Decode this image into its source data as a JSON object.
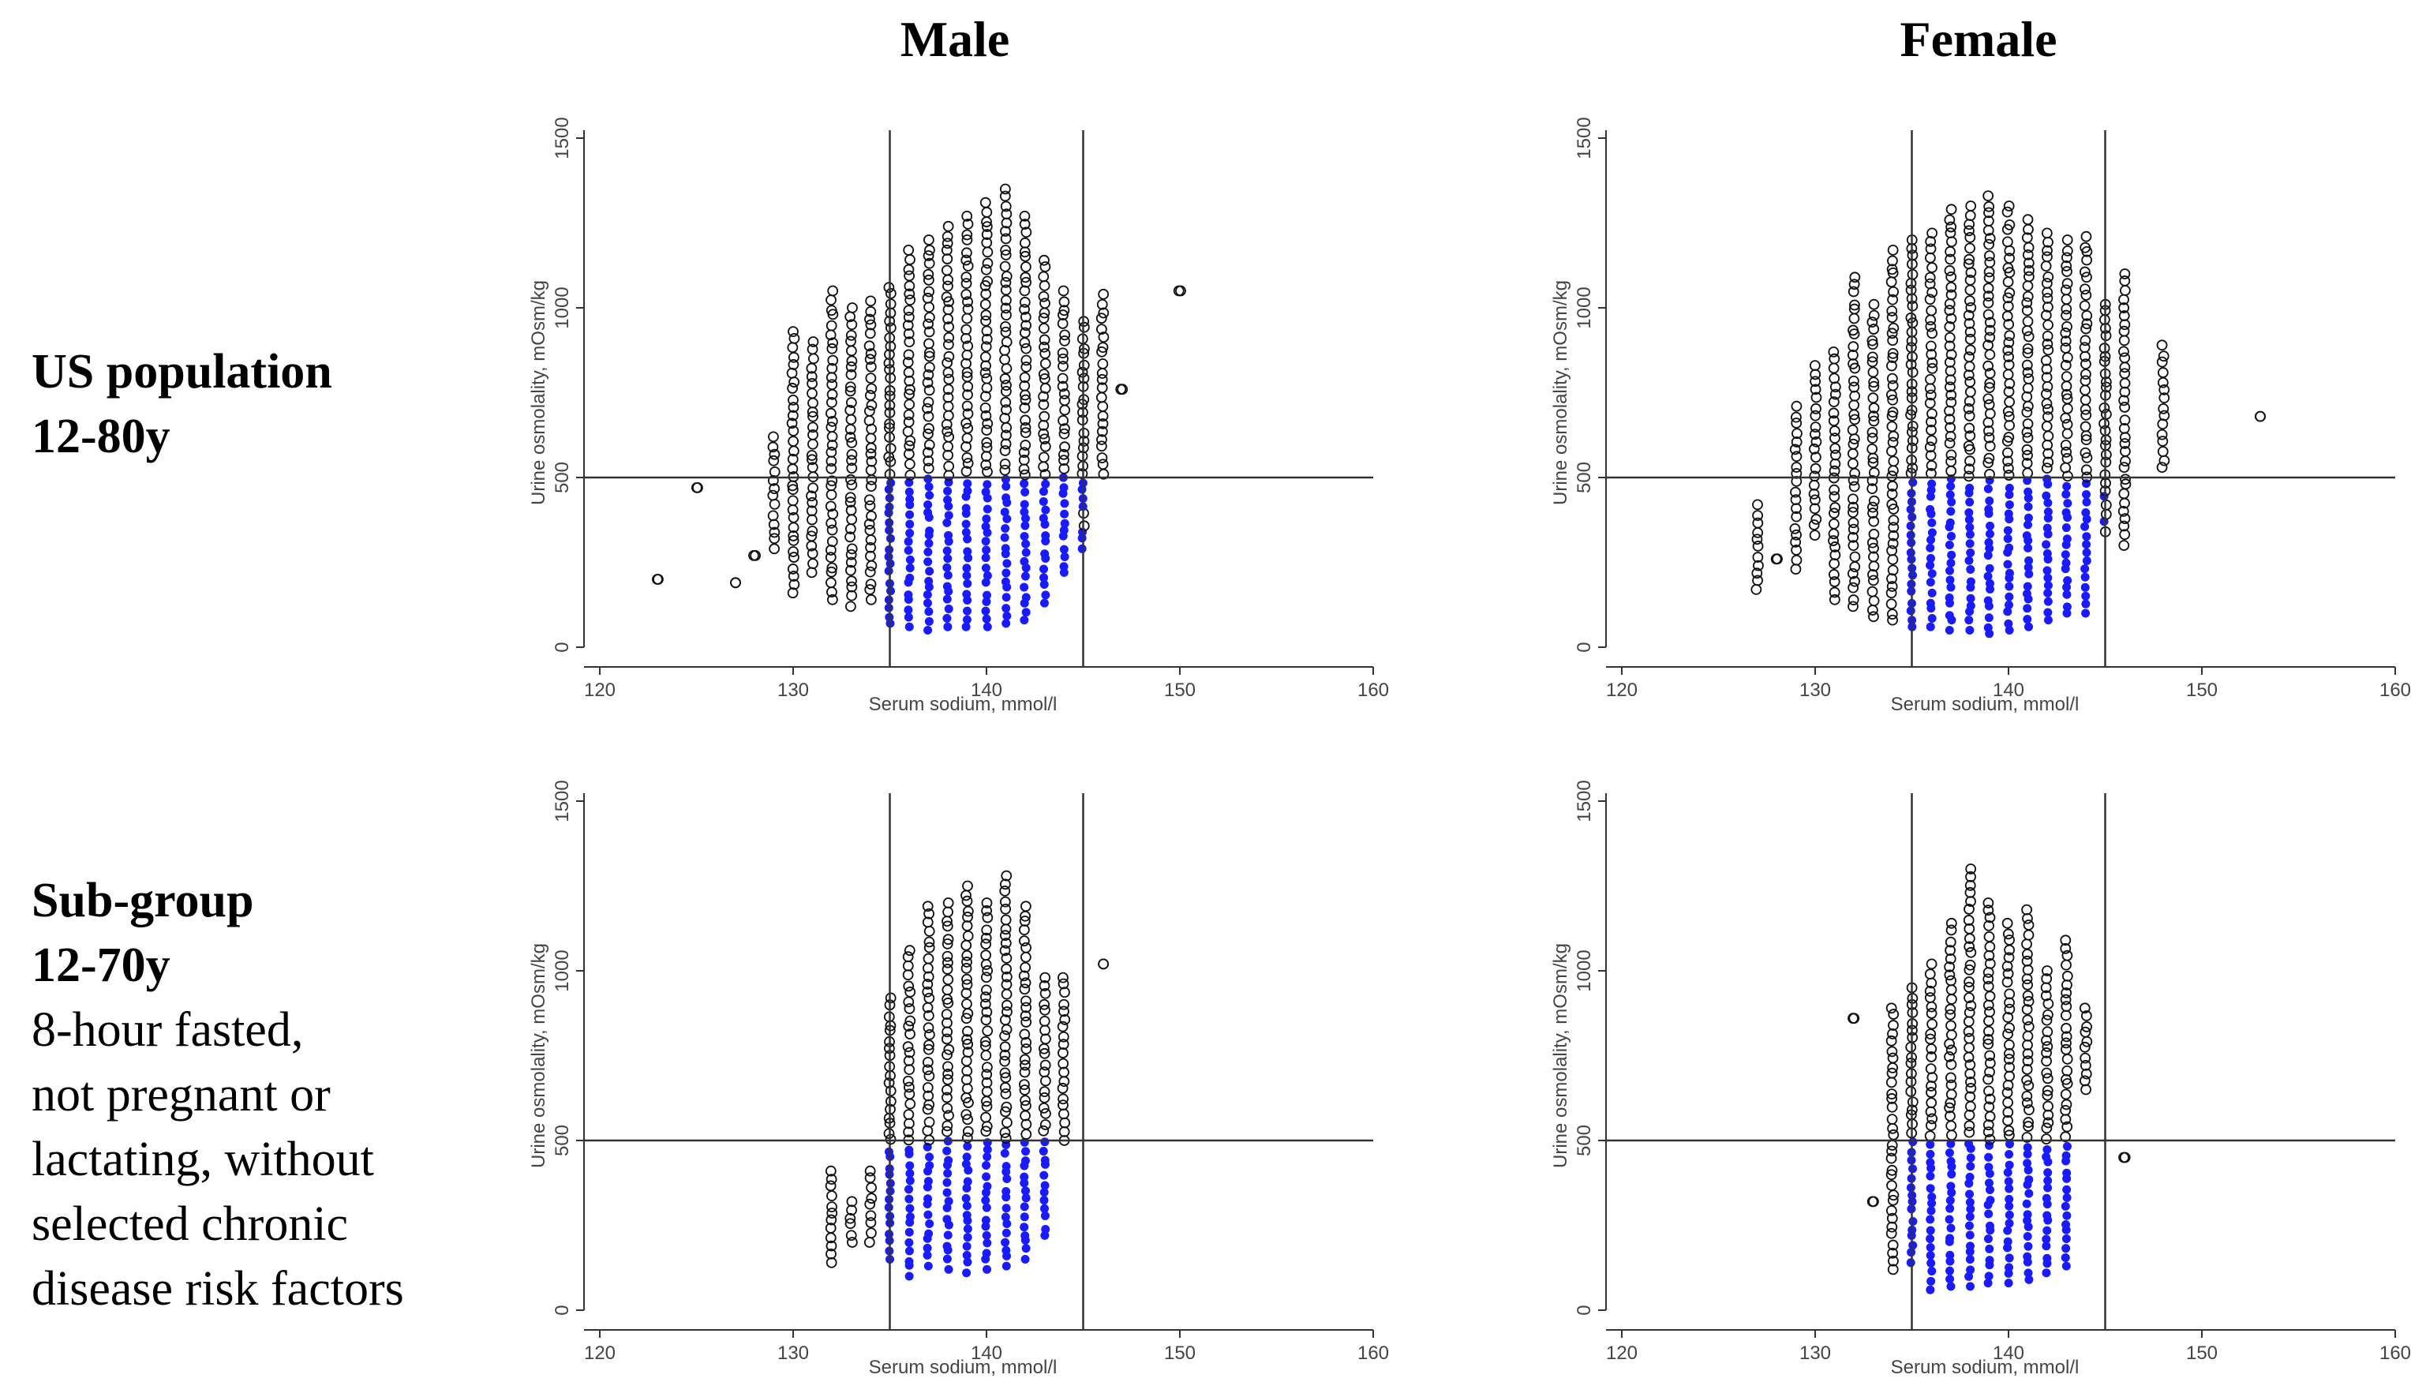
{
  "columns": [
    "Male",
    "Female"
  ],
  "rows": [
    {
      "bold_lines": [
        "US population",
        "12-80y"
      ],
      "plain_lines": []
    },
    {
      "bold_lines": [
        "Sub-group",
        "12-70y"
      ],
      "plain_lines": [
        "8-hour fasted,",
        "not pregnant or",
        "lactating, without",
        "selected chronic",
        "disease risk factors"
      ]
    }
  ],
  "colors": {
    "open_marker": "#111111",
    "filled_marker": "#1a1aff",
    "axis": "#333333"
  },
  "chart_data": [
    {
      "type": "scatter",
      "panel": "US population 12-80y — Male",
      "xlabel": "Serum sodium, mmol/l",
      "ylabel": "Urine osmolality, mOsm/kg",
      "xlim": [
        120,
        160
      ],
      "ylim": [
        0,
        1500
      ],
      "xticks": [
        120,
        130,
        140,
        150,
        160
      ],
      "yticks": [
        0,
        500,
        1000,
        1500
      ],
      "reference_lines": {
        "x": [
          135,
          145
        ],
        "y": [
          500
        ]
      },
      "columns": [
        {
          "x": 123,
          "ymin": 200,
          "ymax": 200
        },
        {
          "x": 125,
          "ymin": 470,
          "ymax": 470
        },
        {
          "x": 127,
          "ymin": 190,
          "ymax": 190
        },
        {
          "x": 128,
          "ymin": 270,
          "ymax": 270
        },
        {
          "x": 129,
          "ymin": 290,
          "ymax": 620
        },
        {
          "x": 130,
          "ymin": 160,
          "ymax": 930
        },
        {
          "x": 131,
          "ymin": 220,
          "ymax": 900
        },
        {
          "x": 132,
          "ymin": 140,
          "ymax": 1050
        },
        {
          "x": 133,
          "ymin": 120,
          "ymax": 1000
        },
        {
          "x": 134,
          "ymin": 140,
          "ymax": 1020
        },
        {
          "x": 135,
          "ymin": 70,
          "ymax": 1060
        },
        {
          "x": 136,
          "ymin": 60,
          "ymax": 1170
        },
        {
          "x": 137,
          "ymin": 50,
          "ymax": 1200
        },
        {
          "x": 138,
          "ymin": 60,
          "ymax": 1240
        },
        {
          "x": 139,
          "ymin": 60,
          "ymax": 1270
        },
        {
          "x": 140,
          "ymin": 60,
          "ymax": 1310
        },
        {
          "x": 141,
          "ymin": 70,
          "ymax": 1350
        },
        {
          "x": 142,
          "ymin": 80,
          "ymax": 1270
        },
        {
          "x": 143,
          "ymin": 130,
          "ymax": 1140
        },
        {
          "x": 144,
          "ymin": 220,
          "ymax": 1050
        },
        {
          "x": 145,
          "ymin": 290,
          "ymax": 960
        },
        {
          "x": 146,
          "ymin": 510,
          "ymax": 1040
        },
        {
          "x": 147,
          "ymin": 760,
          "ymax": 760
        },
        {
          "x": 150,
          "ymin": 1050,
          "ymax": 1050
        }
      ]
    },
    {
      "type": "scatter",
      "panel": "US population 12-80y — Female",
      "xlabel": "Serum sodium, mmol/l",
      "ylabel": "Urine osmolality, mOsm/kg",
      "xlim": [
        120,
        160
      ],
      "ylim": [
        0,
        1500
      ],
      "xticks": [
        120,
        130,
        140,
        150,
        160
      ],
      "yticks": [
        0,
        500,
        1000,
        1500
      ],
      "reference_lines": {
        "x": [
          135,
          145
        ],
        "y": [
          500
        ]
      },
      "columns": [
        {
          "x": 127,
          "ymin": 170,
          "ymax": 420
        },
        {
          "x": 128,
          "ymin": 260,
          "ymax": 260
        },
        {
          "x": 129,
          "ymin": 230,
          "ymax": 710
        },
        {
          "x": 130,
          "ymin": 330,
          "ymax": 830
        },
        {
          "x": 131,
          "ymin": 140,
          "ymax": 870
        },
        {
          "x": 132,
          "ymin": 120,
          "ymax": 1090
        },
        {
          "x": 133,
          "ymin": 90,
          "ymax": 1010
        },
        {
          "x": 134,
          "ymin": 80,
          "ymax": 1170
        },
        {
          "x": 135,
          "ymin": 60,
          "ymax": 1200
        },
        {
          "x": 136,
          "ymin": 60,
          "ymax": 1220
        },
        {
          "x": 137,
          "ymin": 50,
          "ymax": 1290
        },
        {
          "x": 138,
          "ymin": 50,
          "ymax": 1300
        },
        {
          "x": 139,
          "ymin": 40,
          "ymax": 1330
        },
        {
          "x": 140,
          "ymin": 50,
          "ymax": 1300
        },
        {
          "x": 141,
          "ymin": 60,
          "ymax": 1260
        },
        {
          "x": 142,
          "ymin": 80,
          "ymax": 1220
        },
        {
          "x": 143,
          "ymin": 100,
          "ymax": 1200
        },
        {
          "x": 144,
          "ymin": 100,
          "ymax": 1210
        },
        {
          "x": 145,
          "ymin": 340,
          "ymax": 1010
        },
        {
          "x": 146,
          "ymin": 300,
          "ymax": 1100
        },
        {
          "x": 148,
          "ymin": 530,
          "ymax": 890
        },
        {
          "x": 153,
          "ymin": 680,
          "ymax": 680
        }
      ]
    },
    {
      "type": "scatter",
      "panel": "Sub-group 12-70y — Male",
      "xlabel": "Serum sodium, mmol/l",
      "ylabel": "Urine osmolality, mOsm/kg",
      "xlim": [
        120,
        160
      ],
      "ylim": [
        0,
        1500
      ],
      "xticks": [
        120,
        130,
        140,
        150,
        160
      ],
      "yticks": [
        0,
        500,
        1000,
        1500
      ],
      "reference_lines": {
        "x": [
          135,
          145
        ],
        "y": [
          500
        ]
      },
      "columns": [
        {
          "x": 132,
          "ymin": 140,
          "ymax": 410
        },
        {
          "x": 133,
          "ymin": 200,
          "ymax": 320
        },
        {
          "x": 134,
          "ymin": 200,
          "ymax": 410
        },
        {
          "x": 135,
          "ymin": 150,
          "ymax": 920
        },
        {
          "x": 136,
          "ymin": 100,
          "ymax": 1060
        },
        {
          "x": 137,
          "ymin": 130,
          "ymax": 1190
        },
        {
          "x": 138,
          "ymin": 120,
          "ymax": 1200
        },
        {
          "x": 139,
          "ymin": 110,
          "ymax": 1250
        },
        {
          "x": 140,
          "ymin": 120,
          "ymax": 1200
        },
        {
          "x": 141,
          "ymin": 130,
          "ymax": 1280
        },
        {
          "x": 142,
          "ymin": 150,
          "ymax": 1190
        },
        {
          "x": 143,
          "ymin": 220,
          "ymax": 980
        },
        {
          "x": 144,
          "ymin": 500,
          "ymax": 980
        },
        {
          "x": 146,
          "ymin": 1020,
          "ymax": 1020
        }
      ]
    },
    {
      "type": "scatter",
      "panel": "Sub-group 12-70y — Female",
      "xlabel": "Serum sodium, mmol/l",
      "ylabel": "Urine osmolality, mOsm/kg",
      "xlim": [
        120,
        160
      ],
      "ylim": [
        0,
        1500
      ],
      "xticks": [
        120,
        130,
        140,
        150,
        160
      ],
      "yticks": [
        0,
        500,
        1000,
        1500
      ],
      "reference_lines": {
        "x": [
          135,
          145
        ],
        "y": [
          500
        ]
      },
      "columns": [
        {
          "x": 132,
          "ymin": 860,
          "ymax": 860
        },
        {
          "x": 133,
          "ymin": 320,
          "ymax": 320
        },
        {
          "x": 134,
          "ymin": 120,
          "ymax": 890
        },
        {
          "x": 135,
          "ymin": 140,
          "ymax": 950
        },
        {
          "x": 136,
          "ymin": 60,
          "ymax": 1020
        },
        {
          "x": 137,
          "ymin": 70,
          "ymax": 1140
        },
        {
          "x": 138,
          "ymin": 70,
          "ymax": 1300
        },
        {
          "x": 139,
          "ymin": 80,
          "ymax": 1200
        },
        {
          "x": 140,
          "ymin": 80,
          "ymax": 1140
        },
        {
          "x": 141,
          "ymin": 90,
          "ymax": 1180
        },
        {
          "x": 142,
          "ymin": 110,
          "ymax": 1000
        },
        {
          "x": 143,
          "ymin": 130,
          "ymax": 1090
        },
        {
          "x": 144,
          "ymin": 650,
          "ymax": 890
        },
        {
          "x": 146,
          "ymin": 450,
          "ymax": 450
        }
      ]
    }
  ]
}
